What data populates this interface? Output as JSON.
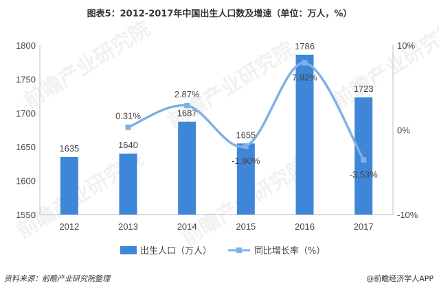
{
  "title": "图表5：2012-2017年中国出生人口数及增速（单位：万人，%）",
  "watermark": "前瞻产业研究院",
  "footer": {
    "source": "资料来源：前瞻产业研究院整理",
    "brand": "@前瞻经济学人APP"
  },
  "colors": {
    "bar": "#3f86d8",
    "line": "#7fb0e6",
    "marker": "#7fb0e6",
    "axis": "#bfbfbf",
    "text": "#444444"
  },
  "chart_data": {
    "type": "bar",
    "categories": [
      "2012",
      "2013",
      "2014",
      "2015",
      "2016",
      "2017"
    ],
    "series": [
      {
        "name": "出生人口（万人）",
        "type": "bar",
        "axis": "left",
        "values": [
          1635,
          1640,
          1687,
          1655,
          1786,
          1723
        ],
        "labels": [
          "1635",
          "1640",
          "1687",
          "1655",
          "1786",
          "1723"
        ]
      },
      {
        "name": "同比增长率（%）",
        "type": "line",
        "axis": "right",
        "smooth": true,
        "values": [
          null,
          0.31,
          2.87,
          -1.9,
          7.92,
          -3.53
        ],
        "labels": [
          "",
          "0.31%",
          "2.87%",
          "-1.90%",
          "7.92%",
          "-3.53%"
        ]
      }
    ],
    "y_left": {
      "min": 1550,
      "max": 1800,
      "ticks": [
        1550,
        1600,
        1650,
        1700,
        1750,
        1800
      ],
      "tick_labels": [
        "1550",
        "1600",
        "1650",
        "1700",
        "1750",
        "1800"
      ]
    },
    "y_right": {
      "min": -10,
      "max": 10,
      "ticks": [
        -10,
        0,
        10
      ],
      "tick_labels": [
        "-10%",
        "0%",
        "10%"
      ]
    },
    "grid": false,
    "legend_position": "bottom"
  }
}
